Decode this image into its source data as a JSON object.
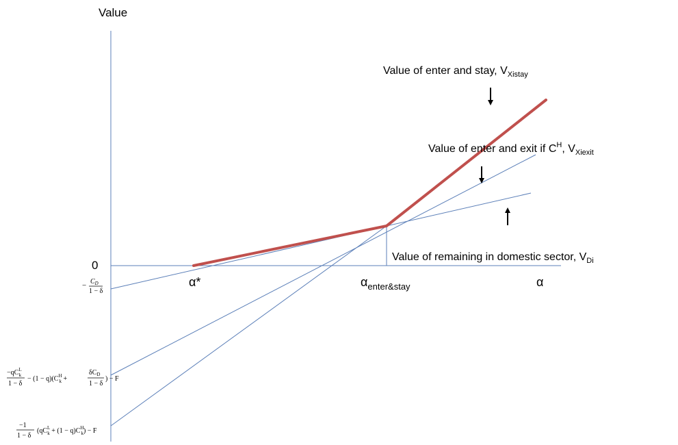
{
  "colors": {
    "axis_line": "#5b7fb8",
    "highlight": "#c0504d",
    "text": "#000000"
  },
  "axis": {
    "y_title": "Value",
    "x_title": "α",
    "zero": "0",
    "alpha_star": "α*",
    "alpha_enter_base": "α",
    "alpha_enter_sub": "enter&stay"
  },
  "annotations": {
    "stay": {
      "text": "Value of enter and stay, V",
      "sub": "Xistay"
    },
    "exit": {
      "text": "Value of enter and exit if C",
      "sup": "H",
      "mid": ", V",
      "sub": "Xiexit"
    },
    "domestic": {
      "text": "Value of remaining in domestic sector, V",
      "sub": "Di"
    }
  },
  "formulas": {
    "cd": {
      "minus": "−",
      "num": "C",
      "num_sub": "D",
      "den": "1 − δ"
    },
    "mid": {
      "num": "−qC",
      "num_sub": "k",
      "num_sup": "L",
      "den": "1 − δ",
      "rest1": "− (1 − q)(C",
      "rest1_sub": "k",
      "rest1_sup": "H",
      "rest1_plus": " +",
      "frac2_num": "δC",
      "frac2_num_sub": "D",
      "frac2_den": "1 − δ",
      "rest2": ") − F"
    },
    "low": {
      "num": "−1",
      "den": "1 − δ",
      "rest": "(qC",
      "rest_sub": "k",
      "rest_sup": "L",
      "rest2": " + (1 − q)C",
      "rest2_sub": "k",
      "rest2_sup": "H",
      "rest3": ") − F"
    }
  },
  "arrows": {
    "stay": "down",
    "exit": "down",
    "domestic": "up"
  }
}
